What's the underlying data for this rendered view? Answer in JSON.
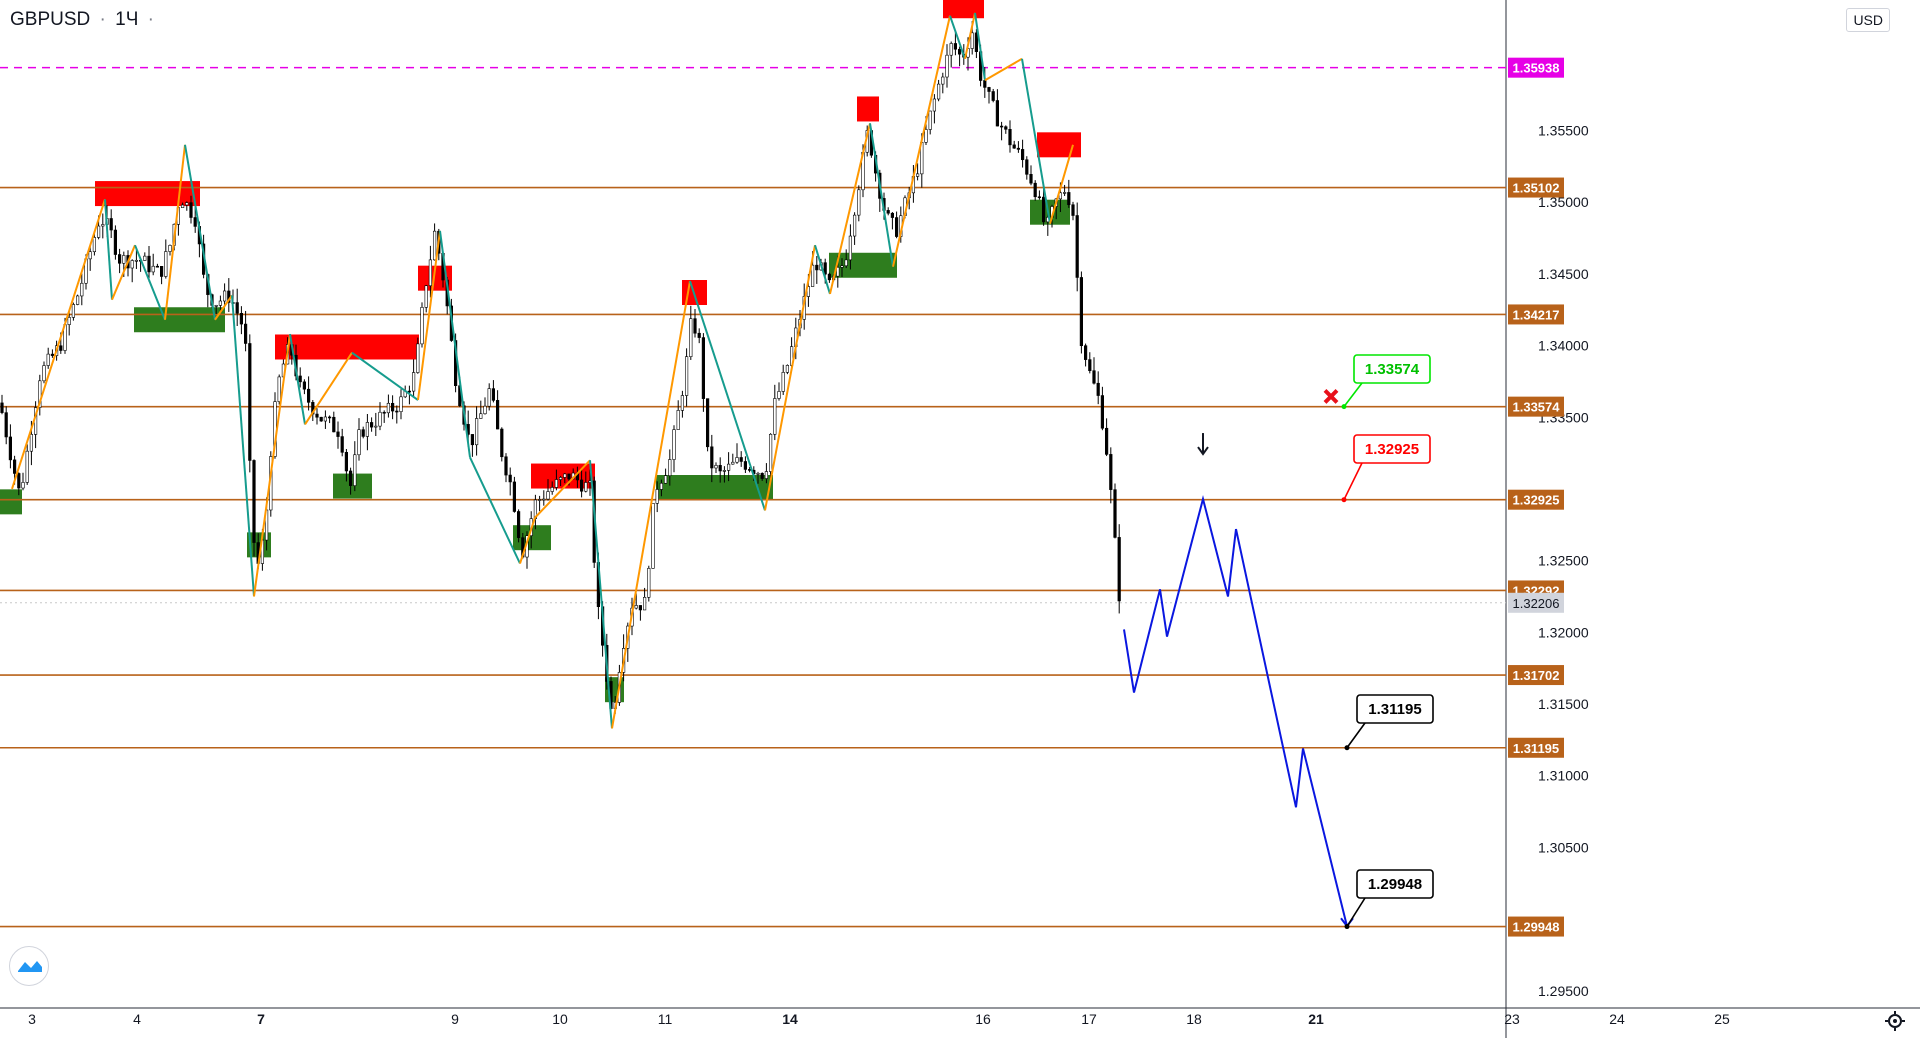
{
  "header": {
    "symbol": "GBPUSD",
    "separator": "·",
    "interval": "1Ч",
    "extra": "·",
    "currency": "USD"
  },
  "icons": {
    "logo": "tradingview-logo-icon",
    "settings": "gear-icon",
    "cross": "red-x-icon",
    "arrow": "down-arrow-icon"
  },
  "colors": {
    "level": "#b8621a",
    "magenta": "#e600e6",
    "supply": "#ff0000",
    "demand": "#2e7d1e",
    "zigzag_up": "#ff9800",
    "zigzag_down": "#169c8e",
    "forecast": "#0a17e0",
    "price_label": "#9598a1"
  },
  "chart_data": {
    "type": "candlestick",
    "title": "GBPUSD · 1Ч",
    "y_axis": {
      "min": 1.2938,
      "max": 1.3641,
      "ticks": [
        "1.35500",
        "1.35000",
        "1.34500",
        "1.34000",
        "1.33500",
        "1.32500",
        "1.32000",
        "1.31500",
        "1.31000",
        "1.30500",
        "1.29500"
      ]
    },
    "x_axis": {
      "ticks": [
        "3",
        "4",
        "7",
        "9",
        "10",
        "11",
        "14",
        "16",
        "17",
        "18",
        "21",
        "23",
        "24",
        "25"
      ],
      "bold": [
        "7",
        "14",
        "21"
      ]
    },
    "horizontal_levels": [
      "1.35102",
      "1.34217",
      "1.33574",
      "1.32925",
      "1.32292",
      "1.31702",
      "1.31195",
      "1.29948"
    ],
    "dashed_level": "1.35938",
    "last_price": "1.32206",
    "callouts": [
      {
        "text": "1.33574",
        "style": "green"
      },
      {
        "text": "1.32925",
        "style": "red"
      },
      {
        "text": "1.31195",
        "style": "black"
      },
      {
        "text": "1.29948",
        "style": "black"
      }
    ],
    "forecast_path": [
      1.3202,
      1.3158,
      1.323,
      1.3197,
      1.3293,
      1.3225,
      1.3272,
      1.3078,
      1.3119,
      1.2995
    ],
    "price_path": [
      [
        0,
        1.336
      ],
      [
        12,
        1.332
      ],
      [
        20,
        1.3295
      ],
      [
        40,
        1.338
      ],
      [
        60,
        1.34
      ],
      [
        80,
        1.344
      ],
      [
        100,
        1.349
      ],
      [
        110,
        1.348
      ],
      [
        120,
        1.346
      ],
      [
        140,
        1.346
      ],
      [
        160,
        1.345
      ],
      [
        170,
        1.347
      ],
      [
        180,
        1.3505
      ],
      [
        195,
        1.349
      ],
      [
        205,
        1.344
      ],
      [
        215,
        1.343
      ],
      [
        230,
        1.3435
      ],
      [
        245,
        1.341
      ],
      [
        250,
        1.331
      ],
      [
        256,
        1.324
      ],
      [
        265,
        1.327
      ],
      [
        272,
        1.334
      ],
      [
        280,
        1.338
      ],
      [
        290,
        1.34
      ],
      [
        300,
        1.337
      ],
      [
        320,
        1.335
      ],
      [
        340,
        1.334
      ],
      [
        350,
        1.33
      ],
      [
        360,
        1.334
      ],
      [
        380,
        1.335
      ],
      [
        400,
        1.336
      ],
      [
        415,
        1.338
      ],
      [
        425,
        1.344
      ],
      [
        435,
        1.348
      ],
      [
        445,
        1.344
      ],
      [
        455,
        1.338
      ],
      [
        470,
        1.333
      ],
      [
        490,
        1.337
      ],
      [
        500,
        1.333
      ],
      [
        512,
        1.33
      ],
      [
        522,
        1.3255
      ],
      [
        535,
        1.329
      ],
      [
        550,
        1.33
      ],
      [
        570,
        1.331
      ],
      [
        590,
        1.33
      ],
      [
        597,
        1.322
      ],
      [
        605,
        1.318
      ],
      [
        612,
        1.314
      ],
      [
        622,
        1.319
      ],
      [
        632,
        1.322
      ],
      [
        645,
        1.322
      ],
      [
        655,
        1.33
      ],
      [
        670,
        1.332
      ],
      [
        685,
        1.338
      ],
      [
        692,
        1.342
      ],
      [
        700,
        1.34
      ],
      [
        708,
        1.332
      ],
      [
        720,
        1.331
      ],
      [
        740,
        1.332
      ],
      [
        765,
        1.331
      ],
      [
        775,
        1.336
      ],
      [
        785,
        1.338
      ],
      [
        800,
        1.342
      ],
      [
        815,
        1.346
      ],
      [
        830,
        1.344
      ],
      [
        845,
        1.346
      ],
      [
        858,
        1.351
      ],
      [
        868,
        1.355
      ],
      [
        876,
        1.352
      ],
      [
        886,
        1.349
      ],
      [
        896,
        1.348
      ],
      [
        906,
        1.35
      ],
      [
        916,
        1.352
      ],
      [
        930,
        1.356
      ],
      [
        942,
        1.359
      ],
      [
        952,
        1.361
      ],
      [
        962,
        1.36
      ],
      [
        972,
        1.362
      ],
      [
        980,
        1.359
      ],
      [
        990,
        1.357
      ],
      [
        1000,
        1.3555
      ],
      [
        1012,
        1.354
      ],
      [
        1022,
        1.353
      ],
      [
        1035,
        1.351
      ],
      [
        1046,
        1.348
      ],
      [
        1056,
        1.35
      ],
      [
        1066,
        1.351
      ],
      [
        1074,
        1.349
      ],
      [
        1080,
        1.341
      ],
      [
        1090,
        1.338
      ],
      [
        1100,
        1.336
      ],
      [
        1108,
        1.332
      ],
      [
        1114,
        1.327
      ],
      [
        1120,
        1.322
      ]
    ],
    "supply_zones": [
      [
        95,
        1.3506,
        105
      ],
      [
        418,
        1.3447,
        34
      ],
      [
        275,
        1.3399,
        144
      ],
      [
        531,
        1.3309,
        64
      ],
      [
        682,
        1.3437,
        25
      ],
      [
        857,
        1.3565,
        22
      ],
      [
        943,
        1.3637,
        41
      ],
      [
        1037,
        1.354,
        44
      ]
    ],
    "demand_zones": [
      [
        0,
        1.3291,
        22
      ],
      [
        134,
        1.3418,
        91
      ],
      [
        333,
        1.3302,
        39
      ],
      [
        513,
        1.3266,
        38
      ],
      [
        247,
        1.3261,
        24
      ],
      [
        605,
        1.316,
        19
      ],
      [
        656,
        1.3301,
        117
      ],
      [
        829,
        1.3456,
        68
      ],
      [
        1030,
        1.3493,
        40
      ]
    ]
  }
}
